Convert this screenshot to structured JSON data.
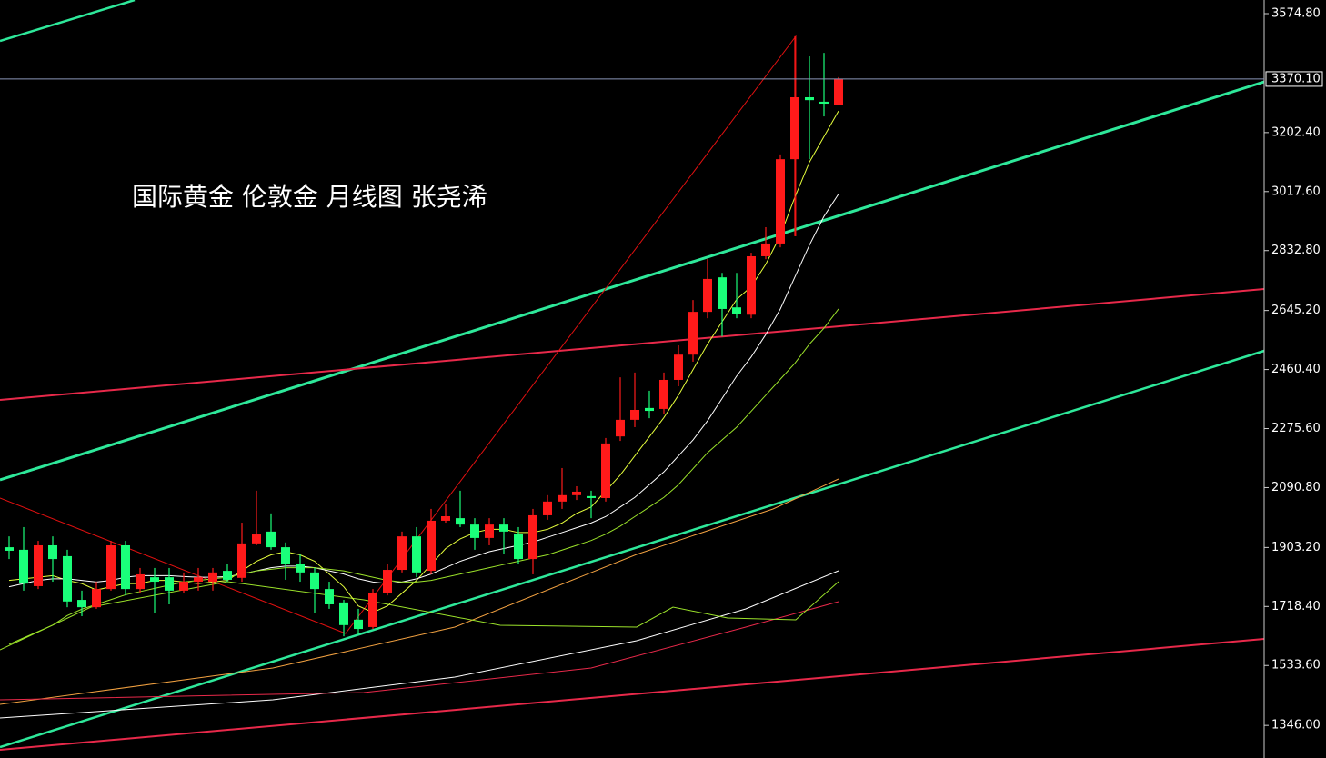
{
  "chart_data": {
    "type": "candlestick",
    "title": "国际黄金 伦敦金  月线图 张尧浠",
    "up_color": "#ff1a1a",
    "down_color": "#1aff7a",
    "ylim": [
      1244,
      3617.5
    ],
    "yticks": [
      {
        "value": 3574.8,
        "label": "3574.80"
      },
      {
        "value": 3202.4,
        "label": "3202.40"
      },
      {
        "value": 3017.6,
        "label": "3017.60"
      },
      {
        "value": 2832.8,
        "label": "2832.80"
      },
      {
        "value": 2645.2,
        "label": "2645.20"
      },
      {
        "value": 2460.4,
        "label": "2460.40"
      },
      {
        "value": 2275.6,
        "label": "2275.60"
      },
      {
        "value": 2090.8,
        "label": "2090.80"
      },
      {
        "value": 1903.2,
        "label": "1903.20"
      },
      {
        "value": 1718.4,
        "label": "1718.40"
      },
      {
        "value": 1533.6,
        "label": "1533.60"
      },
      {
        "value": 1346,
        "label": "1346.00"
      }
    ],
    "last_price": {
      "value": 3370.1,
      "label": "3370.10"
    },
    "open": [
      1904,
      1896,
      1782,
      1910,
      1876,
      1739,
      1716,
      1773,
      1910,
      1773,
      1810,
      1810,
      1768,
      1796,
      1796,
      1830,
      1808,
      1916,
      1953,
      1904,
      1853,
      1825,
      1773,
      1731,
      1677,
      1654,
      1762,
      1833,
      1938,
      1830,
      1987,
      1995,
      1975,
      1933,
      1975,
      1947,
      1867,
      2004,
      2047,
      2067,
      2064,
      2058,
      2251,
      2303,
      2340,
      2337,
      2428,
      2507,
      2641,
      2749,
      2655,
      2632,
      2815,
      2855,
      3119,
      3313,
      3299,
      3290
    ],
    "close": [
      1893,
      1790,
      1910,
      1867,
      1734,
      1716,
      1773,
      1910,
      1773,
      1819,
      1796,
      1768,
      1796,
      1810,
      1825,
      1802,
      1916,
      1944,
      1904,
      1853,
      1825,
      1773,
      1725,
      1660,
      1648,
      1762,
      1833,
      1938,
      1825,
      1987,
      2001,
      1975,
      1933,
      1975,
      1953,
      1867,
      2004,
      2047,
      2067,
      2078,
      2058,
      2229,
      2303,
      2334,
      2331,
      2428,
      2507,
      2641,
      2744,
      2650,
      2635,
      2815,
      2855,
      3119,
      3313,
      3304,
      3293,
      3370.1
    ],
    "high": [
      1938,
      1967,
      1924,
      1938,
      1896,
      1768,
      1796,
      1924,
      1924,
      1839,
      1839,
      1839,
      1825,
      1839,
      1839,
      1853,
      1981,
      2081,
      2010,
      1919,
      1882,
      1839,
      1796,
      1739,
      1711,
      1773,
      1853,
      1953,
      1967,
      2024,
      2038,
      2081,
      1995,
      1995,
      1995,
      1967,
      2024,
      2067,
      2152,
      2095,
      2081,
      2246,
      2436,
      2451,
      2394,
      2451,
      2536,
      2678,
      2806,
      2763,
      2763,
      2826,
      2906,
      3134,
      3504,
      3441,
      3452,
      3376
    ],
    "low": [
      1867,
      1768,
      1773,
      1796,
      1716,
      1688,
      1711,
      1768,
      1753,
      1762,
      1697,
      1725,
      1762,
      1768,
      1768,
      1796,
      1796,
      1910,
      1896,
      1802,
      1796,
      1697,
      1711,
      1625,
      1631,
      1648,
      1753,
      1825,
      1810,
      1819,
      1981,
      1967,
      1896,
      1910,
      1882,
      1853,
      1819,
      1990,
      2024,
      2052,
      1995,
      2047,
      2237,
      2280,
      2308,
      2322,
      2408,
      2485,
      2621,
      2564,
      2621,
      2621,
      2806,
      2843,
      2878,
      3119,
      3253,
      3290
    ],
    "series": [
      {
        "color": "#e6ff3c",
        "values": [
          1800,
          1805,
          1810,
          1815,
          1800,
          1790,
          1770,
          1780,
          1790,
          1790,
          1800,
          1800,
          1795,
          1790,
          1795,
          1800,
          1830,
          1860,
          1880,
          1890,
          1880,
          1860,
          1820,
          1780,
          1720,
          1700,
          1720,
          1760,
          1800,
          1850,
          1900,
          1930,
          1950,
          1960,
          1960,
          1950,
          1950,
          1960,
          1980,
          2010,
          2030,
          2080,
          2130,
          2190,
          2250,
          2310,
          2380,
          2460,
          2540,
          2610,
          2680,
          2720,
          2790,
          2880,
          3000,
          3110,
          3190,
          3270
        ]
      },
      {
        "color": "#ffffff",
        "values": [
          1780,
          1790,
          1800,
          1805,
          1805,
          1800,
          1795,
          1800,
          1810,
          1815,
          1815,
          1815,
          1812,
          1810,
          1810,
          1812,
          1820,
          1830,
          1840,
          1845,
          1845,
          1840,
          1830,
          1820,
          1805,
          1795,
          1790,
          1795,
          1805,
          1820,
          1840,
          1860,
          1875,
          1890,
          1900,
          1910,
          1920,
          1935,
          1950,
          1965,
          1980,
          2000,
          2030,
          2060,
          2100,
          2140,
          2190,
          2240,
          2300,
          2370,
          2440,
          2500,
          2570,
          2650,
          2750,
          2850,
          2940,
          3010
        ]
      },
      {
        "color": "#9be22a",
        "values": [
          1600,
          1620,
          1640,
          1660,
          1690,
          1710,
          1725,
          1740,
          1755,
          1765,
          1775,
          1785,
          1795,
          1800,
          1805,
          1810,
          1820,
          1830,
          1835,
          1840,
          1840,
          1840,
          1835,
          1830,
          1820,
          1810,
          1800,
          1795,
          1795,
          1800,
          1810,
          1820,
          1830,
          1840,
          1850,
          1860,
          1870,
          1880,
          1895,
          1910,
          1925,
          1945,
          1970,
          2000,
          2030,
          2060,
          2100,
          2150,
          2200,
          2240,
          2280,
          2330,
          2380,
          2430,
          2480,
          2540,
          2590,
          2650
        ]
      }
    ]
  }
}
